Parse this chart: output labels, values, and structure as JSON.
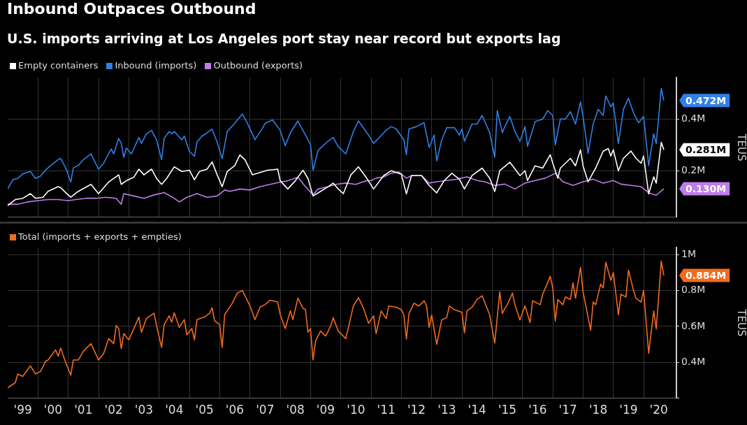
{
  "chart_data": [
    {
      "type": "line",
      "title": "Inbound Outpaces Outbound",
      "subtitle": "U.S. imports arriving at Los Angeles port stay near record but exports lag",
      "ylabel": "TEUS",
      "legend": "top left",
      "grid": true,
      "tick_labels": "y",
      "xlim": [
        "1999-01",
        "2021-02"
      ],
      "xticks": [
        {
          "value": "2000-01",
          "label": null
        },
        {
          "value": "2001-01",
          "label": null
        },
        {
          "value": "2002-01",
          "label": null
        },
        {
          "value": "2003-01",
          "label": null
        },
        {
          "value": "2004-01",
          "label": null
        },
        {
          "value": "2005-01",
          "label": null
        },
        {
          "value": "2006-01",
          "label": null
        },
        {
          "value": "2007-01",
          "label": null
        },
        {
          "value": "2008-01",
          "label": null
        },
        {
          "value": "2009-01",
          "label": null
        },
        {
          "value": "2010-01",
          "label": null
        },
        {
          "value": "2011-01",
          "label": null
        },
        {
          "value": "2012-01",
          "label": null
        },
        {
          "value": "2013-01",
          "label": null
        },
        {
          "value": "2014-01",
          "label": null
        },
        {
          "value": "2015-01",
          "label": null
        },
        {
          "value": "2016-01",
          "label": null
        },
        {
          "value": "2017-01",
          "label": null
        },
        {
          "value": "2018-01",
          "label": null
        },
        {
          "value": "2019-01",
          "label": null
        },
        {
          "value": "2020-01",
          "label": null
        }
      ],
      "ylim": [
        0.02,
        0.56
      ],
      "yticks": [
        {
          "value": 0.2,
          "label": "0.2M"
        },
        {
          "value": 0.4,
          "label": "0.4M"
        }
      ],
      "annotations": [
        {
          "text": "0.472M",
          "x": "2020-09",
          "y": 0.472
        },
        {
          "text": "0.281M",
          "x": "2020-09",
          "y": 0.281
        },
        {
          "text": "0.130M",
          "x": "2020-09",
          "y": 0.13
        }
      ],
      "series": [
        {
          "name": "Empty containers",
          "color": "#ffffff",
          "x": [
            "1999-01",
            "1999-04",
            "1999-07",
            "1999-10",
            "1999-12",
            "2000-03",
            "2000-05",
            "2000-09",
            "2000-10",
            "2000-12",
            "2001-02",
            "2001-05",
            "2001-10",
            "2002-01",
            "2002-05",
            "2002-09",
            "2002-10",
            "2002-12",
            "2003-03",
            "2003-05",
            "2003-07",
            "2003-10",
            "2003-12",
            "2004-02",
            "2004-04",
            "2004-07",
            "2004-10",
            "2005-01",
            "2005-03",
            "2005-05",
            "2005-08",
            "2005-10",
            "2005-12",
            "2006-02",
            "2006-04",
            "2006-07",
            "2006-09",
            "2006-11",
            "2007-02",
            "2007-05",
            "2007-08",
            "2007-12",
            "2008-01",
            "2008-04",
            "2008-07",
            "2008-10",
            "2008-12",
            "2009-02",
            "2009-05",
            "2009-08",
            "2009-10",
            "2009-12",
            "2010-02",
            "2010-05",
            "2010-08",
            "2010-11",
            "2011-02",
            "2011-06",
            "2011-09",
            "2012-01",
            "2012-03",
            "2012-05",
            "2012-09",
            "2012-12",
            "2013-03",
            "2013-06",
            "2013-09",
            "2013-12",
            "2014-02",
            "2014-05",
            "2014-09",
            "2014-12",
            "2015-02",
            "2015-04",
            "2015-08",
            "2015-12",
            "2016-02",
            "2016-03",
            "2016-06",
            "2016-09",
            "2016-12",
            "2017-01",
            "2017-03",
            "2017-04",
            "2017-08",
            "2017-10",
            "2017-12",
            "2018-01",
            "2018-03",
            "2018-06",
            "2018-09",
            "2018-11",
            "2018-12",
            "2019-01",
            "2019-03",
            "2019-05",
            "2019-08",
            "2019-10",
            "2019-12",
            "2020-01",
            "2020-03",
            "2020-05",
            "2020-06",
            "2020-08",
            "2020-09"
          ],
          "values": [
            0.065,
            0.088,
            0.093,
            0.111,
            0.093,
            0.097,
            0.12,
            0.138,
            0.134,
            0.115,
            0.097,
            0.12,
            0.147,
            0.111,
            0.156,
            0.184,
            0.147,
            0.161,
            0.175,
            0.206,
            0.184,
            0.206,
            0.17,
            0.147,
            0.17,
            0.215,
            0.197,
            0.202,
            0.165,
            0.197,
            0.206,
            0.234,
            0.184,
            0.138,
            0.197,
            0.22,
            0.261,
            0.243,
            0.184,
            0.193,
            0.202,
            0.206,
            0.161,
            0.129,
            0.161,
            0.202,
            0.17,
            0.102,
            0.12,
            0.138,
            0.152,
            0.129,
            0.111,
            0.184,
            0.215,
            0.175,
            0.129,
            0.181,
            0.2,
            0.186,
            0.11,
            0.181,
            0.181,
            0.143,
            0.114,
            0.162,
            0.19,
            0.167,
            0.129,
            0.181,
            0.21,
            0.171,
            0.119,
            0.2,
            0.233,
            0.181,
            0.2,
            0.162,
            0.219,
            0.21,
            0.262,
            0.229,
            0.171,
            0.21,
            0.248,
            0.219,
            0.281,
            0.219,
            0.157,
            0.21,
            0.276,
            0.286,
            0.257,
            0.281,
            0.2,
            0.248,
            0.276,
            0.248,
            0.229,
            0.257,
            0.11,
            0.176,
            0.152,
            0.31,
            0.281
          ]
        },
        {
          "name": "Inbound (imports)",
          "color": "#2f80e6",
          "x": [
            "1999-01",
            "1999-03",
            "1999-05",
            "1999-07",
            "1999-10",
            "1999-12",
            "2000-02",
            "2000-04",
            "2000-06",
            "2000-09",
            "2000-10",
            "2000-12",
            "2001-02",
            "2001-03",
            "2001-05",
            "2001-07",
            "2001-10",
            "2002-01",
            "2002-03",
            "2002-06",
            "2002-07",
            "2002-09",
            "2002-10",
            "2002-11",
            "2002-12",
            "2003-02",
            "2003-05",
            "2003-06",
            "2003-08",
            "2003-10",
            "2003-12",
            "2004-02",
            "2004-03",
            "2004-05",
            "2004-06",
            "2004-07",
            "2004-10",
            "2004-11",
            "2005-01",
            "2005-03",
            "2005-04",
            "2005-06",
            "2005-08",
            "2005-10",
            "2005-12",
            "2006-02",
            "2006-04",
            "2006-07",
            "2006-10",
            "2006-12",
            "2007-03",
            "2007-06",
            "2007-07",
            "2007-10",
            "2008-01",
            "2008-03",
            "2008-05",
            "2008-08",
            "2008-10",
            "2009-01",
            "2009-02",
            "2009-04",
            "2009-06",
            "2009-08",
            "2009-10",
            "2009-12",
            "2010-03",
            "2010-06",
            "2010-08",
            "2010-12",
            "2011-02",
            "2011-07",
            "2011-09",
            "2011-11",
            "2012-02",
            "2012-03",
            "2012-04",
            "2012-07",
            "2012-10",
            "2012-12",
            "2013-02",
            "2013-03",
            "2013-05",
            "2013-07",
            "2013-10",
            "2013-12",
            "2014-01",
            "2014-02",
            "2014-05",
            "2014-07",
            "2014-09",
            "2014-12",
            "2015-02",
            "2015-03",
            "2015-05",
            "2015-06",
            "2015-08",
            "2015-10",
            "2015-12",
            "2016-02",
            "2016-03",
            "2016-06",
            "2016-09",
            "2016-11",
            "2017-01",
            "2017-02",
            "2017-04",
            "2017-06",
            "2017-08",
            "2017-10",
            "2017-12",
            "2018-01",
            "2018-03",
            "2018-05",
            "2018-07",
            "2018-09",
            "2018-10",
            "2018-12",
            "2019-01",
            "2019-03",
            "2019-05",
            "2019-07",
            "2019-09",
            "2019-11",
            "2020-01",
            "2020-03",
            "2020-05",
            "2020-06",
            "2020-08",
            "2020-09"
          ],
          "values": [
            0.129,
            0.165,
            0.17,
            0.188,
            0.197,
            0.17,
            0.179,
            0.202,
            0.22,
            0.243,
            0.247,
            0.211,
            0.156,
            0.211,
            0.22,
            0.243,
            0.265,
            0.206,
            0.229,
            0.284,
            0.265,
            0.325,
            0.306,
            0.252,
            0.288,
            0.265,
            0.329,
            0.306,
            0.343,
            0.356,
            0.32,
            0.243,
            0.325,
            0.352,
            0.343,
            0.352,
            0.32,
            0.334,
            0.275,
            0.256,
            0.311,
            0.334,
            0.347,
            0.361,
            0.311,
            0.247,
            0.352,
            0.384,
            0.42,
            0.384,
            0.32,
            0.365,
            0.384,
            0.397,
            0.356,
            0.297,
            0.347,
            0.393,
            0.356,
            0.302,
            0.202,
            0.279,
            0.297,
            0.315,
            0.329,
            0.293,
            0.265,
            0.352,
            0.393,
            0.338,
            0.306,
            0.357,
            0.371,
            0.362,
            0.319,
            0.262,
            0.362,
            0.371,
            0.386,
            0.29,
            0.338,
            0.238,
            0.319,
            0.367,
            0.367,
            0.338,
            0.362,
            0.314,
            0.381,
            0.381,
            0.414,
            0.348,
            0.252,
            0.433,
            0.348,
            0.371,
            0.41,
            0.352,
            0.314,
            0.371,
            0.295,
            0.39,
            0.4,
            0.433,
            0.414,
            0.3,
            0.4,
            0.4,
            0.429,
            0.381,
            0.467,
            0.41,
            0.267,
            0.381,
            0.438,
            0.414,
            0.49,
            0.448,
            0.462,
            0.305,
            0.438,
            0.481,
            0.424,
            0.386,
            0.41,
            0.219,
            0.343,
            0.305,
            0.519,
            0.472
          ]
        },
        {
          "name": "Outbound (exports)",
          "color": "#c07ce8",
          "x": [
            "1999-01",
            "1999-05",
            "1999-09",
            "2000-01",
            "2000-05",
            "2000-09",
            "2001-01",
            "2001-04",
            "2001-08",
            "2001-12",
            "2002-04",
            "2002-08",
            "2002-10",
            "2002-11",
            "2003-03",
            "2003-07",
            "2003-11",
            "2004-03",
            "2004-07",
            "2004-09",
            "2004-12",
            "2005-04",
            "2005-08",
            "2005-12",
            "2006-03",
            "2006-05",
            "2006-09",
            "2007-01",
            "2007-05",
            "2007-09",
            "2008-01",
            "2008-04",
            "2008-08",
            "2008-11",
            "2009-02",
            "2009-04",
            "2009-08",
            "2009-11",
            "2010-03",
            "2010-07",
            "2010-11",
            "2011-01",
            "2011-03",
            "2011-06",
            "2011-09",
            "2011-12",
            "2012-03",
            "2012-05",
            "2012-09",
            "2012-12",
            "2013-03",
            "2013-07",
            "2013-11",
            "2014-03",
            "2014-07",
            "2014-10",
            "2015-02",
            "2015-06",
            "2015-10",
            "2016-02",
            "2016-06",
            "2016-10",
            "2017-02",
            "2017-05",
            "2017-09",
            "2018-01",
            "2018-05",
            "2018-09",
            "2019-01",
            "2019-04",
            "2019-08",
            "2019-12",
            "2020-03",
            "2020-06",
            "2020-09"
          ],
          "values": [
            0.07,
            0.07,
            0.079,
            0.084,
            0.088,
            0.088,
            0.084,
            0.088,
            0.093,
            0.093,
            0.097,
            0.093,
            0.07,
            0.111,
            0.102,
            0.093,
            0.106,
            0.115,
            0.093,
            0.079,
            0.097,
            0.111,
            0.097,
            0.102,
            0.125,
            0.12,
            0.129,
            0.125,
            0.138,
            0.147,
            0.156,
            0.161,
            0.175,
            0.138,
            0.106,
            0.129,
            0.138,
            0.147,
            0.152,
            0.147,
            0.161,
            0.162,
            0.171,
            0.176,
            0.19,
            0.195,
            0.171,
            0.181,
            0.181,
            0.152,
            0.157,
            0.162,
            0.167,
            0.176,
            0.162,
            0.157,
            0.143,
            0.148,
            0.129,
            0.152,
            0.162,
            0.171,
            0.19,
            0.157,
            0.143,
            0.157,
            0.167,
            0.152,
            0.162,
            0.148,
            0.143,
            0.138,
            0.114,
            0.105,
            0.13
          ]
        }
      ]
    },
    {
      "type": "line",
      "ylabel": "TEUS",
      "legend": "top left",
      "grid": true,
      "xlim": [
        "1999-01",
        "2021-02"
      ],
      "xticks": [
        {
          "value": "1999-07",
          "label": "'99"
        },
        {
          "value": "2000-01",
          "label": null
        },
        {
          "value": "2000-07",
          "label": "'00"
        },
        {
          "value": "2001-01",
          "label": null
        },
        {
          "value": "2001-07",
          "label": "'01"
        },
        {
          "value": "2002-01",
          "label": null
        },
        {
          "value": "2002-07",
          "label": "'02"
        },
        {
          "value": "2003-01",
          "label": null
        },
        {
          "value": "2003-07",
          "label": "'03"
        },
        {
          "value": "2004-01",
          "label": null
        },
        {
          "value": "2004-07",
          "label": "'04"
        },
        {
          "value": "2005-01",
          "label": null
        },
        {
          "value": "2005-07",
          "label": "'05"
        },
        {
          "value": "2006-01",
          "label": null
        },
        {
          "value": "2006-07",
          "label": "'06"
        },
        {
          "value": "2007-01",
          "label": null
        },
        {
          "value": "2007-07",
          "label": "'07"
        },
        {
          "value": "2008-01",
          "label": null
        },
        {
          "value": "2008-07",
          "label": "'08"
        },
        {
          "value": "2009-01",
          "label": null
        },
        {
          "value": "2009-07",
          "label": "'09"
        },
        {
          "value": "2010-01",
          "label": null
        },
        {
          "value": "2010-07",
          "label": "'10"
        },
        {
          "value": "2011-01",
          "label": null
        },
        {
          "value": "2011-07",
          "label": "'11"
        },
        {
          "value": "2012-01",
          "label": null
        },
        {
          "value": "2012-07",
          "label": "'12"
        },
        {
          "value": "2013-01",
          "label": null
        },
        {
          "value": "2013-07",
          "label": "'13"
        },
        {
          "value": "2014-01",
          "label": null
        },
        {
          "value": "2014-07",
          "label": "'14"
        },
        {
          "value": "2015-01",
          "label": null
        },
        {
          "value": "2015-07",
          "label": "'15"
        },
        {
          "value": "2016-01",
          "label": null
        },
        {
          "value": "2016-07",
          "label": "'16"
        },
        {
          "value": "2017-01",
          "label": null
        },
        {
          "value": "2017-07",
          "label": "'17"
        },
        {
          "value": "2018-01",
          "label": null
        },
        {
          "value": "2018-07",
          "label": "'18"
        },
        {
          "value": "2019-01",
          "label": null
        },
        {
          "value": "2019-07",
          "label": "'19"
        },
        {
          "value": "2020-01",
          "label": null
        },
        {
          "value": "2020-07",
          "label": "'20"
        }
      ],
      "ylim": [
        0.2,
        1.04
      ],
      "yticks": [
        {
          "value": 0.2,
          "label": null
        },
        {
          "value": 0.4,
          "label": "0.4M"
        },
        {
          "value": 0.6,
          "label": "0.6M"
        },
        {
          "value": 0.8,
          "label": "0.8M"
        },
        {
          "value": 1,
          "label": "1M"
        }
      ],
      "annotations": [
        {
          "text": "0.884M",
          "x": "2020-09",
          "y": 0.884
        }
      ],
      "series": [
        {
          "name": "Total (imports + exports + empties)",
          "color": "#f26b1d",
          "x": [
            "1999-01",
            "1999-04",
            "1999-05",
            "1999-07",
            "1999-08",
            "1999-10",
            "1999-12",
            "2000-02",
            "2000-04",
            "2000-05",
            "2000-08",
            "2000-09",
            "2000-10",
            "2000-12",
            "2001-02",
            "2001-03",
            "2001-05",
            "2001-07",
            "2001-10",
            "2002-01",
            "2002-03",
            "2002-05",
            "2002-07",
            "2002-08",
            "2002-09",
            "2002-10",
            "2002-11",
            "2003-01",
            "2003-05",
            "2003-06",
            "2003-08",
            "2003-11",
            "2003-12",
            "2004-02",
            "2004-03",
            "2004-05",
            "2004-06",
            "2004-07",
            "2004-09",
            "2004-11",
            "2004-12",
            "2005-02",
            "2005-03",
            "2005-04",
            "2005-07",
            "2005-09",
            "2005-10",
            "2005-11",
            "2006-01",
            "2006-02",
            "2006-03",
            "2006-06",
            "2006-08",
            "2006-10",
            "2007-01",
            "2007-03",
            "2007-05",
            "2007-07",
            "2007-09",
            "2007-12",
            "2008-01",
            "2008-03",
            "2008-05",
            "2008-06",
            "2008-08",
            "2008-10",
            "2008-11",
            "2008-12",
            "2009-01",
            "2009-02",
            "2009-03",
            "2009-05",
            "2009-07",
            "2009-09",
            "2009-10",
            "2009-12",
            "2010-03",
            "2010-06",
            "2010-08",
            "2010-10",
            "2010-12",
            "2011-02",
            "2011-03",
            "2011-05",
            "2011-07",
            "2011-08",
            "2011-11",
            "2012-01",
            "2012-02",
            "2012-03",
            "2012-04",
            "2012-06",
            "2012-08",
            "2012-10",
            "2012-11",
            "2012-12",
            "2013-01",
            "2013-03",
            "2013-05",
            "2013-07",
            "2013-08",
            "2013-10",
            "2014-01",
            "2014-02",
            "2014-03",
            "2014-05",
            "2014-07",
            "2014-09",
            "2014-12",
            "2015-02",
            "2015-04",
            "2015-05",
            "2015-06",
            "2015-07",
            "2015-09",
            "2015-10",
            "2015-12",
            "2016-02",
            "2016-04",
            "2016-05",
            "2016-08",
            "2016-09",
            "2016-12",
            "2017-01",
            "2017-02",
            "2017-03",
            "2017-05",
            "2017-06",
            "2017-08",
            "2017-09",
            "2017-10",
            "2017-12",
            "2018-01",
            "2018-04",
            "2018-05",
            "2018-06",
            "2018-08",
            "2018-09",
            "2018-10",
            "2018-12",
            "2019-01",
            "2019-03",
            "2019-04",
            "2019-06",
            "2019-07",
            "2019-09",
            "2019-10",
            "2019-12",
            "2020-01",
            "2020-03",
            "2020-05",
            "2020-06",
            "2020-08",
            "2020-09"
          ],
          "values": [
            0.258,
            0.286,
            0.335,
            0.321,
            0.342,
            0.38,
            0.335,
            0.349,
            0.405,
            0.413,
            0.469,
            0.434,
            0.479,
            0.398,
            0.328,
            0.413,
            0.413,
            0.462,
            0.504,
            0.413,
            0.448,
            0.532,
            0.504,
            0.605,
            0.588,
            0.476,
            0.56,
            0.525,
            0.652,
            0.567,
            0.645,
            0.673,
            0.603,
            0.483,
            0.61,
            0.659,
            0.624,
            0.676,
            0.595,
            0.638,
            0.553,
            0.588,
            0.525,
            0.638,
            0.652,
            0.673,
            0.704,
            0.631,
            0.61,
            0.483,
            0.666,
            0.729,
            0.786,
            0.8,
            0.715,
            0.638,
            0.708,
            0.722,
            0.746,
            0.736,
            0.666,
            0.588,
            0.687,
            0.638,
            0.757,
            0.701,
            0.694,
            0.567,
            0.588,
            0.413,
            0.518,
            0.574,
            0.546,
            0.603,
            0.648,
            0.574,
            0.532,
            0.715,
            0.76,
            0.701,
            0.617,
            0.659,
            0.56,
            0.686,
            0.643,
            0.714,
            0.707,
            0.693,
            0.664,
            0.529,
            0.671,
            0.729,
            0.714,
            0.743,
            0.714,
            0.593,
            0.664,
            0.5,
            0.636,
            0.65,
            0.714,
            0.693,
            0.679,
            0.564,
            0.686,
            0.707,
            0.75,
            0.771,
            0.664,
            0.507,
            0.793,
            0.671,
            0.7,
            0.721,
            0.786,
            0.721,
            0.636,
            0.714,
            0.621,
            0.743,
            0.721,
            0.779,
            0.879,
            0.814,
            0.629,
            0.75,
            0.721,
            0.764,
            0.75,
            0.843,
            0.757,
            0.929,
            0.793,
            0.579,
            0.736,
            0.721,
            0.836,
            0.814,
            0.957,
            0.857,
            0.9,
            0.664,
            0.779,
            0.764,
            0.914,
            0.8,
            0.757,
            0.736,
            0.8,
            0.45,
            0.686,
            0.586,
            0.964,
            0.884
          ]
        }
      ]
    }
  ]
}
